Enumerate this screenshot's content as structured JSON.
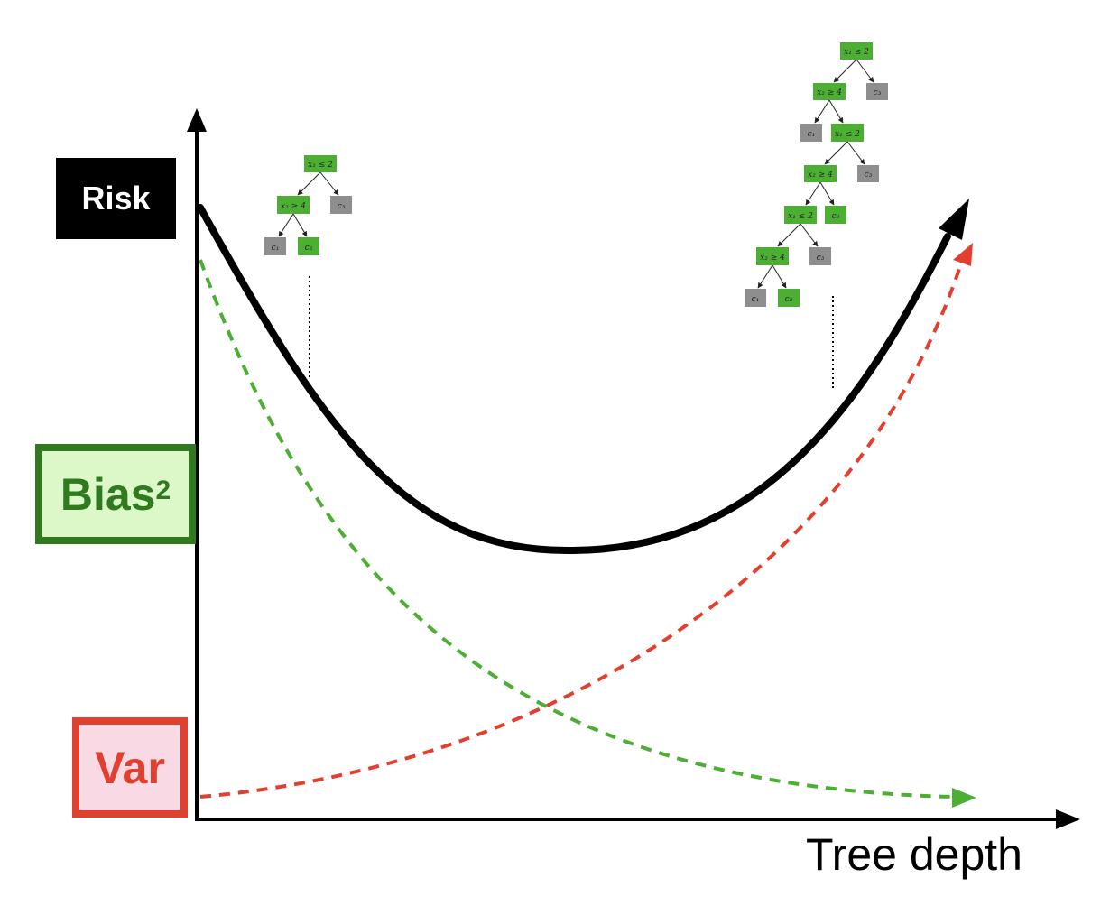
{
  "labels": {
    "risk": "Risk",
    "bias": "Bias",
    "bias_sup": "2",
    "var": "Var",
    "x_axis": "Tree depth"
  },
  "colors": {
    "risk": "#000000",
    "bias": "#4cae33",
    "bias_dark": "#2f7a1f",
    "variance": "#e04030",
    "node_split": "#4cae33",
    "node_leaf": "#8e8e8e"
  },
  "trees": {
    "shallow": {
      "nodes": [
        {
          "id": "r",
          "label": "x₁ ≤ 2",
          "type": "split"
        },
        {
          "id": "a",
          "label": "x₂ ≥ 4",
          "type": "split"
        },
        {
          "id": "c3",
          "label": "c₃",
          "type": "leaf"
        },
        {
          "id": "c1",
          "label": "c₁",
          "type": "leaf"
        },
        {
          "id": "c2",
          "label": "c₂",
          "type": "split"
        }
      ]
    },
    "deep": {
      "nodes": [
        {
          "id": "r",
          "label": "x₁ ≤ 2",
          "type": "split"
        },
        {
          "id": "a",
          "label": "x₂ ≥ 4",
          "type": "split"
        },
        {
          "id": "c3a",
          "label": "c₃",
          "type": "leaf"
        },
        {
          "id": "c1a",
          "label": "c₁",
          "type": "leaf"
        },
        {
          "id": "b",
          "label": "x₁ ≤ 2",
          "type": "split"
        },
        {
          "id": "d",
          "label": "x₂ ≥ 4",
          "type": "split"
        },
        {
          "id": "c3b",
          "label": "c₃",
          "type": "leaf"
        },
        {
          "id": "e",
          "label": "x₁ ≤ 2",
          "type": "split"
        },
        {
          "id": "c2b",
          "label": "c₂",
          "type": "split"
        },
        {
          "id": "f",
          "label": "x₂ ≥ 4",
          "type": "split"
        },
        {
          "id": "c3c",
          "label": "c₃",
          "type": "leaf"
        },
        {
          "id": "c1c",
          "label": "c₁",
          "type": "leaf"
        },
        {
          "id": "c2c",
          "label": "c₂",
          "type": "split"
        }
      ]
    }
  }
}
